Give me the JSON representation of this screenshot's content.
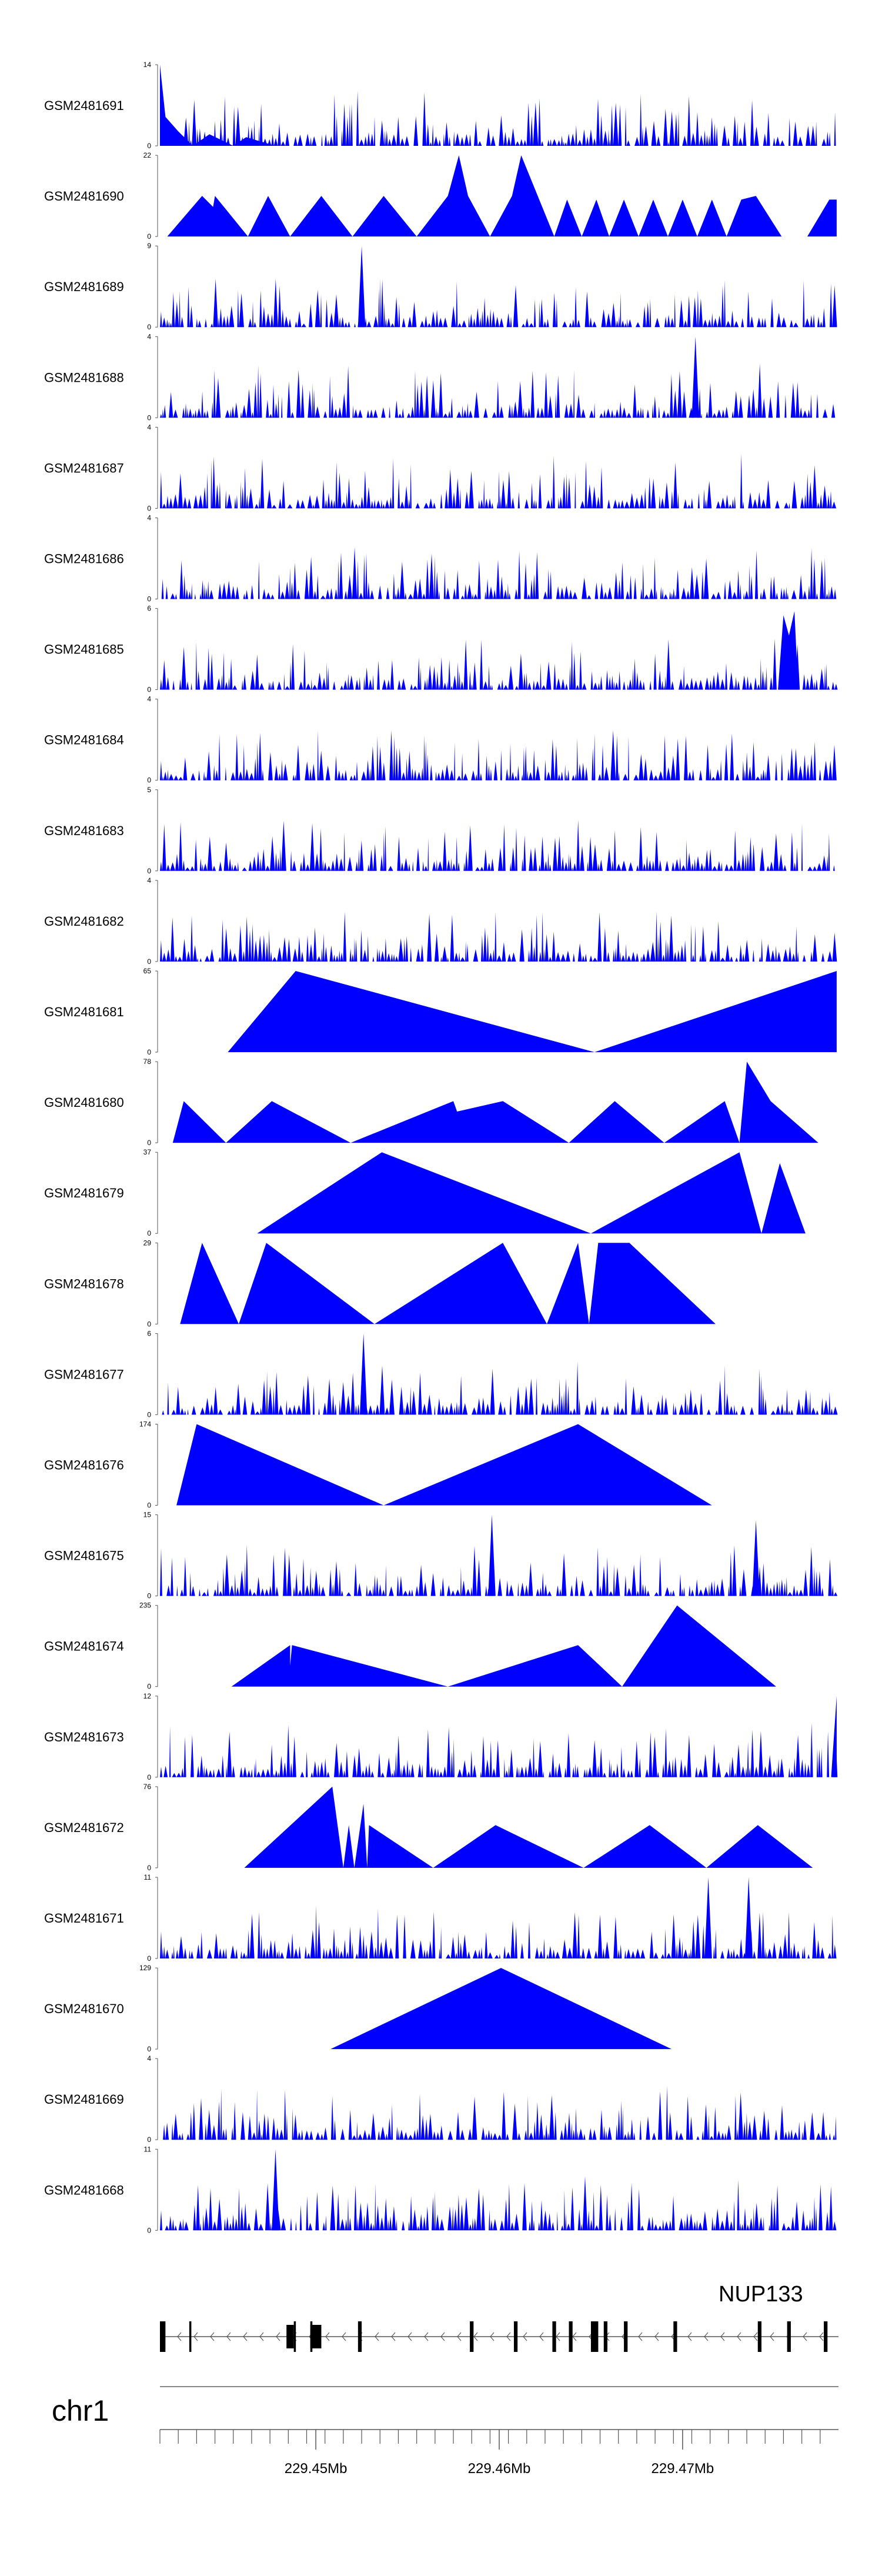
{
  "colors": {
    "signal": "#0000ff",
    "axis": "#555555",
    "gene": "#000000",
    "ideogram": "#888888"
  },
  "chart_data": {
    "type": "area",
    "x_unit": "Mb",
    "xlim": [
      229.4415,
      229.4785
    ],
    "tracks": [
      {
        "label": "GSM2481691",
        "ymax": "14",
        "ylim": [
          0,
          14
        ],
        "pattern": "dense",
        "seed": 11,
        "x": [
          229.4415,
          229.4418,
          229.4425,
          229.4433,
          229.4442,
          229.4455,
          229.4462,
          229.4478
        ],
        "y": [
          14,
          5,
          2.5,
          0,
          2,
          0,
          1.5,
          0
        ]
      },
      {
        "label": "GSM2481690",
        "ymax": "22",
        "ylim": [
          0,
          22
        ],
        "x": [
          229.4415,
          229.4419,
          229.4438,
          229.4444,
          229.4445,
          229.4463,
          229.4474,
          229.4486,
          229.4503,
          229.452,
          229.4537,
          229.4555,
          229.4572,
          229.4578,
          229.4583,
          229.4595,
          229.4607,
          229.4612,
          229.463,
          229.4637,
          229.4645,
          229.4653,
          229.466,
          229.4668,
          229.4676,
          229.4684,
          229.4692,
          229.47,
          229.4708,
          229.4716,
          229.4724,
          229.4732,
          229.474,
          229.4754,
          229.4768,
          229.478,
          229.4784
        ],
        "y": [
          0,
          0,
          11,
          8,
          11,
          0,
          11,
          0,
          11,
          0,
          11,
          0,
          11,
          22,
          11,
          0,
          11,
          22,
          0,
          10,
          0,
          10,
          0,
          10,
          0,
          10,
          0,
          10,
          0,
          10,
          0,
          10,
          11,
          0,
          0,
          10,
          10
        ]
      },
      {
        "label": "GSM2481689",
        "ymax": "9",
        "ylim": [
          0,
          9
        ],
        "pattern": "dense",
        "seed": 23,
        "x": [
          229.4523,
          229.4525,
          229.4527
        ],
        "y": [
          0,
          9,
          0
        ]
      },
      {
        "label": "GSM2481688",
        "ymax": "4",
        "ylim": [
          0,
          4
        ],
        "pattern": "dense",
        "seed": 37,
        "x": [
          229.4705,
          229.4707,
          229.4709
        ],
        "y": [
          0,
          4,
          0
        ]
      },
      {
        "label": "GSM2481687",
        "ymax": "4",
        "ylim": [
          0,
          4
        ],
        "pattern": "dense",
        "seed": 41,
        "x": [],
        "y": []
      },
      {
        "label": "GSM2481686",
        "ymax": "4",
        "ylim": [
          0,
          4
        ],
        "pattern": "dense",
        "seed": 53,
        "x": [],
        "y": []
      },
      {
        "label": "GSM2481685",
        "ymax": "6",
        "ylim": [
          0,
          6
        ],
        "pattern": "dense",
        "seed": 59,
        "x": [
          229.4752,
          229.4755,
          229.4758,
          229.4761,
          229.4763
        ],
        "y": [
          0,
          5.5,
          4,
          5.8,
          0
        ]
      },
      {
        "label": "GSM2481684",
        "ymax": "4",
        "ylim": [
          0,
          4
        ],
        "pattern": "dense",
        "seed": 67,
        "x": [],
        "y": []
      },
      {
        "label": "GSM2481683",
        "ymax": "5",
        "ylim": [
          0,
          5
        ],
        "pattern": "dense",
        "seed": 71,
        "x": [],
        "y": []
      },
      {
        "label": "GSM2481682",
        "ymax": "4",
        "ylim": [
          0,
          4
        ],
        "pattern": "dense",
        "seed": 83,
        "x": [],
        "y": []
      },
      {
        "label": "GSM2481681",
        "ymax": "65",
        "ylim": [
          0,
          65
        ],
        "x": [
          229.4452,
          229.4489,
          229.4652,
          229.4784
        ],
        "y": [
          0,
          65,
          0,
          65
        ]
      },
      {
        "label": "GSM2481680",
        "ymax": "78",
        "ylim": [
          0,
          78
        ],
        "x": [
          229.4422,
          229.4428,
          229.4451,
          229.4476,
          229.4519,
          229.4575,
          229.4577,
          229.4602,
          229.4638,
          229.4663,
          229.469,
          229.4723,
          229.4731,
          229.4735,
          229.4748,
          229.4774
        ],
        "y": [
          0,
          40,
          0,
          40,
          0,
          40,
          30,
          40,
          0,
          40,
          0,
          40,
          0,
          78,
          40,
          0
        ]
      },
      {
        "label": "GSM2481679",
        "ymax": "37",
        "ylim": [
          0,
          37
        ],
        "x": [
          229.4468,
          229.4536,
          229.465,
          229.4731,
          229.4743,
          229.4753,
          229.4767
        ],
        "y": [
          0,
          37,
          0,
          37,
          0,
          32,
          0
        ]
      },
      {
        "label": "GSM2481678",
        "ymax": "29",
        "ylim": [
          0,
          29
        ],
        "x": [
          229.4426,
          229.4438,
          229.4458,
          229.4473,
          229.4532,
          229.4602,
          229.4626,
          229.4643,
          229.4649,
          229.4654,
          229.4671,
          229.4718
        ],
        "y": [
          0,
          29,
          0,
          29,
          0,
          29,
          0,
          29,
          0,
          29,
          29,
          0
        ]
      },
      {
        "label": "GSM2481677",
        "ymax": "6",
        "ylim": [
          0,
          6
        ],
        "pattern": "dense",
        "seed": 97,
        "x": [
          229.4524,
          229.4526,
          229.4528
        ],
        "y": [
          0,
          6,
          0
        ]
      },
      {
        "label": "GSM2481676",
        "ymax": "174",
        "ylim": [
          0,
          174
        ],
        "x": [
          229.4424,
          229.4435,
          229.4537,
          229.4643,
          229.4716
        ],
        "y": [
          0,
          174,
          0,
          174,
          0
        ]
      },
      {
        "label": "GSM2481675",
        "ymax": "15",
        "ylim": [
          0,
          15
        ],
        "pattern": "dense",
        "seed": 101,
        "x": [
          229.4594,
          229.4596,
          229.4598,
          229.4738,
          229.474,
          229.4742
        ],
        "y": [
          0,
          15,
          0,
          0,
          14,
          0
        ]
      },
      {
        "label": "GSM2481674",
        "ymax": "235",
        "ylim": [
          0,
          235
        ],
        "x": [
          229.4454,
          229.4486,
          229.4486,
          229.4487,
          229.4572,
          229.4643,
          229.4667,
          229.4697,
          229.4751
        ],
        "y": [
          0,
          120,
          60,
          120,
          0,
          120,
          0,
          235,
          0
        ]
      },
      {
        "label": "GSM2481673",
        "ymax": "12",
        "ylim": [
          0,
          12
        ],
        "pattern": "dense",
        "seed": 113,
        "x": [
          229.4781,
          229.4784
        ],
        "y": [
          0,
          12
        ]
      },
      {
        "label": "GSM2481672",
        "ymax": "76",
        "ylim": [
          0,
          76
        ],
        "x": [
          229.4461,
          229.4509,
          229.4515,
          229.4518,
          229.4521,
          229.4526,
          229.4528,
          229.4529,
          229.4564,
          229.4598,
          229.4646,
          229.4682,
          229.4713,
          229.4741,
          229.4771
        ],
        "y": [
          0,
          76,
          0,
          40,
          0,
          60,
          0,
          40,
          0,
          40,
          0,
          40,
          0,
          40,
          0
        ]
      },
      {
        "label": "GSM2481671",
        "ymax": "11",
        "ylim": [
          0,
          11
        ],
        "pattern": "dense",
        "seed": 127,
        "x": [
          229.4712,
          229.4714,
          229.4716,
          229.4734,
          229.4736,
          229.4738
        ],
        "y": [
          0,
          11,
          0,
          0,
          11,
          0
        ]
      },
      {
        "label": "GSM2481670",
        "ymax": "129",
        "ylim": [
          0,
          129
        ],
        "x": [
          229.4508,
          229.4601,
          229.4694
        ],
        "y": [
          0,
          129,
          0
        ]
      },
      {
        "label": "GSM2481669",
        "ymax": "4",
        "ylim": [
          0,
          4
        ],
        "pattern": "dense",
        "seed": 131,
        "x": [],
        "y": []
      },
      {
        "label": "GSM2481668",
        "ymax": "11",
        "ylim": [
          0,
          11
        ],
        "pattern": "dense",
        "seed": 137,
        "x": [
          229.4476,
          229.4478,
          229.448
        ],
        "y": [
          0,
          11,
          0
        ]
      }
    ],
    "gene": {
      "name": "NUP133",
      "strand": "-",
      "range": [
        229.4415,
        229.4785
      ],
      "exons": [
        [
          229.4415,
          229.4418,
          "tall"
        ],
        [
          229.4431,
          229.4432,
          "tall"
        ],
        [
          229.4484,
          229.4488,
          "short"
        ],
        [
          229.4488,
          229.44885,
          "tall"
        ],
        [
          229.4497,
          229.4503,
          "short"
        ],
        [
          229.4497,
          229.4498,
          "tall"
        ],
        [
          229.4523,
          229.4525,
          "tall"
        ],
        [
          229.4584,
          229.4586,
          "tall"
        ],
        [
          229.4608,
          229.461,
          "tall"
        ],
        [
          229.4629,
          229.4631,
          "tall"
        ],
        [
          229.4638,
          229.464,
          "tall"
        ],
        [
          229.465,
          229.4654,
          "tall"
        ],
        [
          229.4657,
          229.4659,
          "tall"
        ],
        [
          229.4668,
          229.467,
          "tall"
        ],
        [
          229.4695,
          229.4697,
          "tall"
        ],
        [
          229.4741,
          229.4743,
          "tall"
        ],
        [
          229.4757,
          229.4759,
          "tall"
        ],
        [
          229.4777,
          229.4779,
          "tall"
        ]
      ]
    },
    "chromosome": "chr1",
    "x_ticks": [
      229.4415,
      229.4425,
      229.4435,
      229.4445,
      229.4455,
      229.4465,
      229.4475,
      229.4485,
      229.4495,
      229.4505,
      229.4515,
      229.4525,
      229.4535,
      229.4545,
      229.4555,
      229.4565,
      229.4575,
      229.4585,
      229.4595,
      229.4605,
      229.4615,
      229.4625,
      229.4635,
      229.4645,
      229.4655,
      229.4665,
      229.4675,
      229.4685,
      229.4695,
      229.4705,
      229.4715,
      229.4725,
      229.4735,
      229.4745,
      229.4755,
      229.4765,
      229.4775
    ],
    "x_tick_labels": [
      {
        "value": 229.45,
        "label": "229.45Mb"
      },
      {
        "value": 229.46,
        "label": "229.46Mb"
      },
      {
        "value": 229.47,
        "label": "229.47Mb"
      }
    ]
  }
}
